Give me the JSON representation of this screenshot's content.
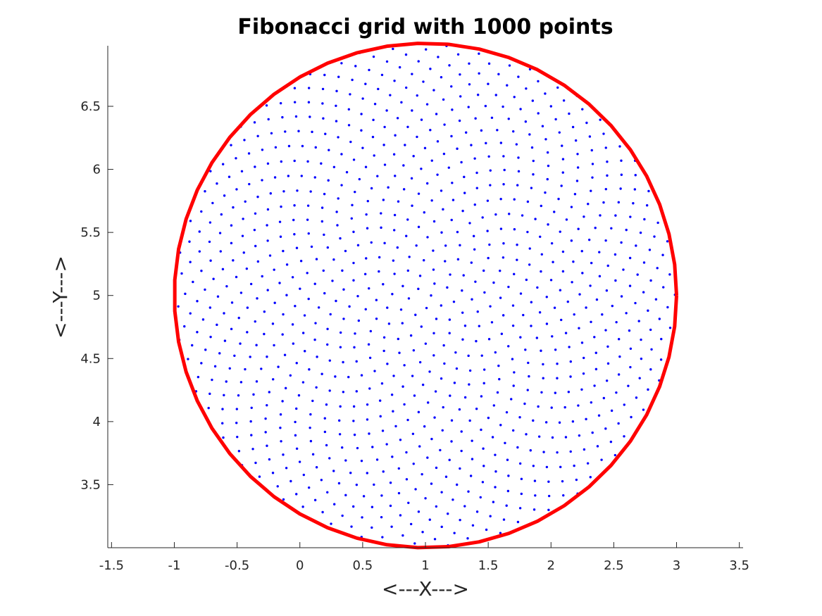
{
  "chart_data": {
    "type": "scatter",
    "title": "Fibonacci grid with 1000 points",
    "xlabel": "<---X--->",
    "ylabel": "<---Y--->",
    "xlim": [
      -1.53,
      3.53
    ],
    "ylim": [
      3.0,
      6.98
    ],
    "x_ticks": [
      -1.5,
      -1,
      -0.5,
      0,
      0.5,
      1,
      1.5,
      2,
      2.5,
      3,
      3.5
    ],
    "x_tick_labels": [
      "-1.5",
      "-1",
      "-0.5",
      "0",
      "0.5",
      "1",
      "1.5",
      "2",
      "2.5",
      "3",
      "3.5"
    ],
    "y_ticks": [
      3.5,
      4,
      4.5,
      5,
      5.5,
      6,
      6.5
    ],
    "y_tick_labels": [
      "3.5",
      "4",
      "4.5",
      "5",
      "5.5",
      "6",
      "6.5"
    ],
    "grid": false,
    "series": [
      {
        "kind": "fibonacci-points",
        "n_points": 1000,
        "center": [
          1,
          5
        ],
        "radius": 2,
        "color": "#0000ff"
      },
      {
        "kind": "circle-boundary",
        "center": [
          1,
          5
        ],
        "radius": 2,
        "segments": 51,
        "color": "#ff0000"
      }
    ]
  }
}
